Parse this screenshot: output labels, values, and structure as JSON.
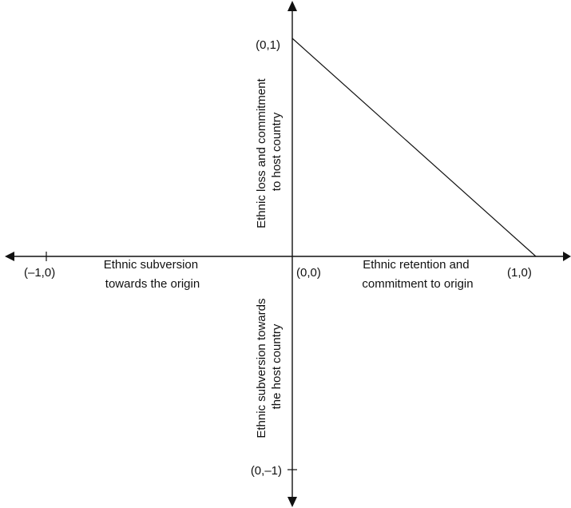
{
  "diagram": {
    "points": {
      "top": "(0,1)",
      "origin": "(0,0)",
      "right": "(1,0)",
      "left": "(–1,0)",
      "bottom": "(0,–1)"
    },
    "labels": {
      "positive_x": [
        "Ethnic retention and",
        "commitment to origin"
      ],
      "negative_x": [
        "Ethnic subversion",
        "towards the origin"
      ],
      "positive_y": [
        "Ethnic loss and commitment",
        "to host country"
      ],
      "negative_y": [
        "Ethnic subversion towards",
        "the host country"
      ]
    }
  }
}
